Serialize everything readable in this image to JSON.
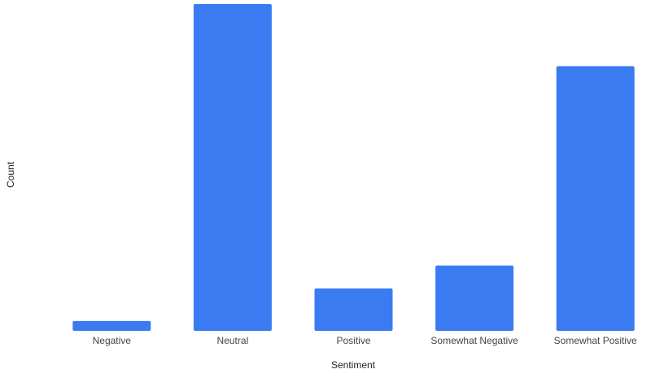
{
  "chart_data": {
    "type": "bar",
    "title": "",
    "xlabel": "Sentiment",
    "ylabel": "Count",
    "categories": [
      "Negative",
      "Neutral",
      "Positive",
      "Somewhat Negative",
      "Somewhat Positive"
    ],
    "values": [
      3,
      100,
      13,
      20,
      81
    ],
    "ylim": [
      0,
      100
    ],
    "grid": false,
    "legend": "none",
    "bar_color": "#3a7bf2"
  }
}
